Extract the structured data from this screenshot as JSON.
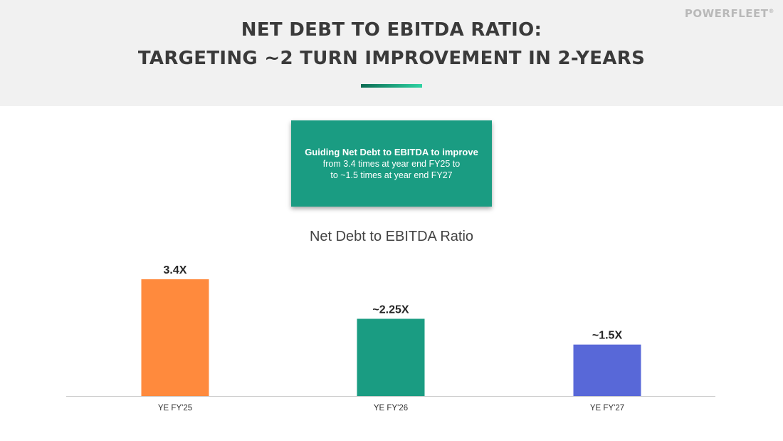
{
  "header": {
    "title_line1": "NET DEBT TO EBITDA RATIO:",
    "title_line2": "TARGETING ~2 TURN IMPROVEMENT IN 2-YEARS",
    "logo_text": "POWERFLEET",
    "logo_mark": "®"
  },
  "callout": {
    "line1": "Guiding Net Debt to EBITDA to improve",
    "line2": "from 3.4 times at year end FY25 to",
    "line3": "to ~1.5 times at year end FY27"
  },
  "colors": {
    "accent": "#1a9c82",
    "bar_fy25": "#ff8a3d",
    "bar_fy26": "#1a9c82",
    "bar_fy27": "#5868d8"
  },
  "chart_data": {
    "type": "bar",
    "title": "Net Debt to EBITDA Ratio",
    "categories": [
      "YE FY'25",
      "YE FY'26",
      "YE FY'27"
    ],
    "values": [
      3.4,
      2.25,
      1.5
    ],
    "value_labels": [
      "3.4X",
      "~2.25X",
      "~1.5X"
    ],
    "colors": [
      "#ff8a3d",
      "#1a9c82",
      "#5868d8"
    ],
    "xlabel": "",
    "ylabel": "",
    "ylim": [
      0,
      3.4
    ],
    "grid": false
  }
}
